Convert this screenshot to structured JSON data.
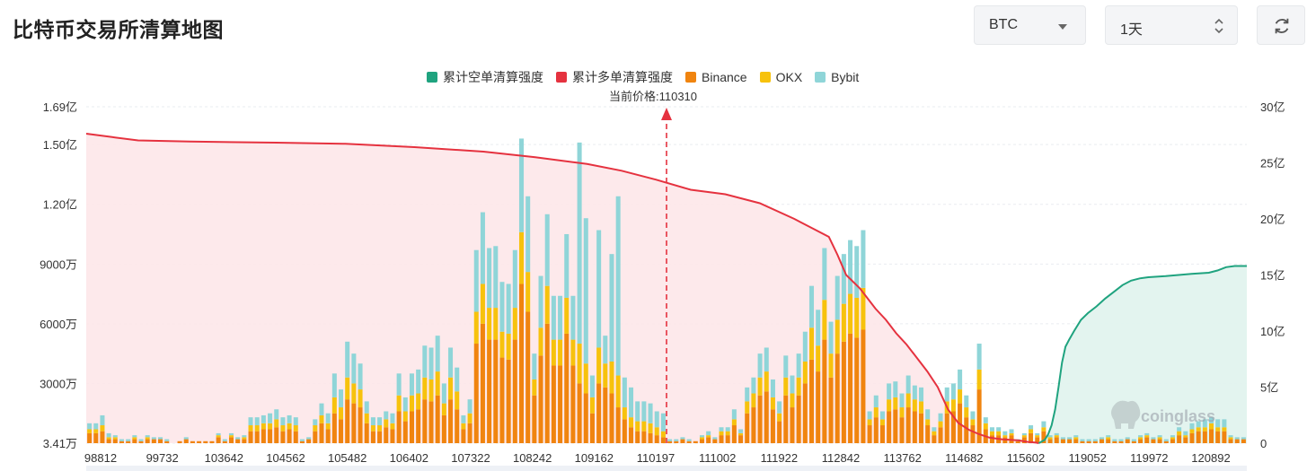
{
  "page": {
    "title": "比特币交易所清算地图",
    "coin_select": {
      "value": "BTC"
    },
    "range_select": {
      "value": "1天"
    },
    "refresh_icon": "refresh-icon"
  },
  "chart_data": {
    "type": "bar+area",
    "legend": [
      {
        "label": "累计空单清算强度",
        "color": "#1fa37f"
      },
      {
        "label": "累计多单清算强度",
        "color": "#e5323f"
      },
      {
        "label": "Binance",
        "color": "#f0840f"
      },
      {
        "label": "OKX",
        "color": "#f7c20d"
      },
      {
        "label": "Bybit",
        "color": "#8fd5d8"
      }
    ],
    "current_price_label": "当前价格:110310",
    "current_price": 110310,
    "x_tick_labels": [
      "98812",
      "99732",
      "103642",
      "104562",
      "105482",
      "106402",
      "107322",
      "108242",
      "109162",
      "110197",
      "111002",
      "111922",
      "112842",
      "113762",
      "114682",
      "115602",
      "119052",
      "119972",
      "120892"
    ],
    "left_axis": {
      "ticks": [
        "1.69亿",
        "1.50亿",
        "1.20亿",
        "9000万",
        "6000万",
        "3000万",
        "3.41万"
      ],
      "values": [
        169000000,
        150000000,
        120000000,
        90000000,
        60000000,
        30000000,
        34100
      ],
      "range": [
        34100,
        169000000
      ]
    },
    "right_axis": {
      "ticks": [
        "30亿",
        "25亿",
        "20亿",
        "15亿",
        "10亿",
        "5亿",
        "0"
      ],
      "values": [
        3000000000,
        2500000000,
        2000000000,
        1500000000,
        1000000000,
        500000000,
        0
      ],
      "range": [
        0,
        3000000000
      ]
    },
    "bars_per_side": 90,
    "left_bar_totals_M": [
      10,
      10,
      14,
      5,
      4,
      2,
      2,
      4,
      2,
      4,
      3,
      3,
      2,
      0,
      1,
      3,
      1,
      1,
      1,
      1,
      5,
      2,
      5,
      3,
      4,
      13,
      13,
      14,
      15,
      17,
      13,
      14,
      13,
      2,
      3,
      12,
      20,
      15,
      35,
      27,
      51,
      45,
      40,
      21,
      13,
      13,
      16,
      15,
      35,
      23,
      35,
      37,
      49,
      48,
      54,
      30,
      48,
      38,
      14,
      22,
      97,
      116,
      98,
      99,
      81,
      80,
      97,
      153,
      124,
      45,
      84,
      115,
      74,
      74,
      105,
      74,
      151,
      113,
      34,
      107,
      54,
      95,
      124,
      33,
      28,
      21,
      21,
      20,
      16,
      15
    ],
    "left_bar_binance_M": [
      5,
      5,
      6,
      2,
      2,
      1,
      1,
      2,
      1,
      2,
      2,
      2,
      1,
      0,
      1,
      2,
      1,
      1,
      1,
      1,
      3,
      1,
      3,
      2,
      2,
      6,
      6,
      7,
      7,
      8,
      6,
      7,
      6,
      1,
      2,
      6,
      10,
      7,
      15,
      12,
      22,
      20,
      18,
      10,
      6,
      6,
      8,
      7,
      16,
      11,
      16,
      17,
      22,
      21,
      24,
      14,
      22,
      17,
      7,
      10,
      50,
      60,
      52,
      52,
      43,
      42,
      52,
      80,
      66,
      24,
      44,
      60,
      39,
      39,
      55,
      39,
      30,
      25,
      15,
      30,
      28,
      25,
      18,
      12,
      8,
      6,
      6,
      5,
      4,
      3
    ],
    "left_bar_okx_M": [
      2,
      2,
      3,
      1,
      1,
      0,
      0,
      1,
      0,
      1,
      0,
      0,
      0,
      0,
      0,
      0,
      0,
      0,
      0,
      0,
      1,
      0,
      1,
      0,
      1,
      3,
      3,
      3,
      3,
      4,
      3,
      3,
      3,
      0,
      0,
      3,
      4,
      3,
      8,
      6,
      11,
      10,
      9,
      5,
      3,
      3,
      4,
      3,
      8,
      5,
      8,
      8,
      11,
      11,
      12,
      6,
      11,
      9,
      3,
      5,
      16,
      20,
      16,
      16,
      13,
      13,
      16,
      26,
      20,
      8,
      14,
      19,
      13,
      13,
      18,
      13,
      20,
      15,
      8,
      18,
      12,
      16,
      16,
      6,
      5,
      5,
      5,
      5,
      4,
      3
    ],
    "right_bar_totals_M": [
      2,
      2,
      3,
      2,
      1,
      4,
      6,
      3,
      8,
      8,
      17,
      7,
      28,
      33,
      45,
      48,
      32,
      21,
      44,
      34,
      45,
      56,
      79,
      67,
      98,
      61,
      84,
      95,
      102,
      99,
      107,
      16,
      24,
      16,
      30,
      31,
      25,
      34,
      29,
      28,
      17,
      8,
      15,
      28,
      30,
      37,
      24,
      16,
      50,
      13,
      8,
      8,
      6,
      7,
      2,
      5,
      9,
      5,
      11,
      4,
      5,
      3,
      3,
      4,
      2,
      2,
      2,
      3,
      4,
      2,
      2,
      3,
      2,
      4,
      5,
      3,
      4,
      2,
      4,
      8,
      6,
      10,
      11,
      12,
      13,
      12,
      12,
      4,
      3,
      3
    ],
    "right_bar_binance_M": [
      1,
      1,
      2,
      1,
      1,
      2,
      3,
      2,
      4,
      4,
      9,
      4,
      15,
      18,
      24,
      26,
      17,
      11,
      24,
      18,
      24,
      30,
      42,
      36,
      52,
      33,
      45,
      51,
      55,
      53,
      57,
      9,
      13,
      9,
      16,
      17,
      13,
      18,
      16,
      15,
      9,
      4,
      8,
      15,
      16,
      20,
      13,
      9,
      27,
      7,
      4,
      4,
      3,
      4,
      1,
      3,
      5,
      3,
      6,
      2,
      3,
      2,
      2,
      2,
      1,
      1,
      1,
      2,
      2,
      1,
      1,
      2,
      1,
      2,
      3,
      2,
      2,
      1,
      2,
      4,
      3,
      5,
      6,
      6,
      7,
      6,
      6,
      2,
      2,
      2
    ],
    "right_bar_okx_M": [
      0,
      0,
      0,
      0,
      0,
      1,
      1,
      0,
      2,
      2,
      3,
      1,
      6,
      7,
      9,
      10,
      6,
      4,
      9,
      7,
      9,
      11,
      16,
      13,
      20,
      12,
      17,
      19,
      20,
      20,
      21,
      3,
      5,
      3,
      6,
      6,
      5,
      7,
      6,
      6,
      3,
      2,
      3,
      6,
      6,
      7,
      5,
      3,
      10,
      3,
      2,
      2,
      1,
      1,
      0,
      1,
      2,
      1,
      2,
      1,
      1,
      0,
      0,
      1,
      0,
      0,
      0,
      0,
      1,
      0,
      0,
      0,
      0,
      1,
      1,
      0,
      1,
      0,
      1,
      2,
      1,
      2,
      2,
      2,
      3,
      2,
      2,
      1,
      0,
      0
    ],
    "cumulative_long_points": [
      [
        0,
        27.6
      ],
      [
        3,
        27.3
      ],
      [
        6,
        27.0
      ],
      [
        12,
        26.9
      ],
      [
        22,
        26.8
      ],
      [
        30,
        26.7
      ],
      [
        38,
        26.4
      ],
      [
        46,
        26.0
      ],
      [
        52,
        25.5
      ],
      [
        58,
        24.9
      ],
      [
        62,
        24.3
      ],
      [
        66,
        23.5
      ],
      [
        70,
        22.6
      ],
      [
        74,
        22.2
      ],
      [
        78,
        21.4
      ],
      [
        82,
        20.0
      ],
      [
        84,
        19.2
      ],
      [
        86,
        18.4
      ],
      [
        87,
        16.8
      ],
      [
        88,
        15.0
      ],
      [
        89.6,
        13.8
      ],
      [
        90.2,
        13.2
      ],
      [
        91.4,
        12.0
      ],
      [
        92.6,
        11.0
      ],
      [
        93.8,
        9.8
      ],
      [
        95.0,
        8.8
      ],
      [
        96.2,
        7.6
      ],
      [
        97.4,
        6.4
      ],
      [
        98.6,
        5.0
      ],
      [
        99.8,
        3.0
      ],
      [
        101,
        1.8
      ],
      [
        102.2,
        1.2
      ],
      [
        103.4,
        0.8
      ],
      [
        104.6,
        0.5
      ],
      [
        106,
        0.35
      ],
      [
        108,
        0.25
      ],
      [
        109,
        0.12
      ],
      [
        110,
        0.05
      ],
      [
        110.31,
        0
      ]
    ],
    "cumulative_short_points": [
      [
        110.31,
        0
      ],
      [
        111,
        0.3
      ],
      [
        111.4,
        0.8
      ],
      [
        111.8,
        1.6
      ],
      [
        112.2,
        3.0
      ],
      [
        112.6,
        5.0
      ],
      [
        113.0,
        7.2
      ],
      [
        113.4,
        8.6
      ],
      [
        113.8,
        9.2
      ],
      [
        114.4,
        10.0
      ],
      [
        115.2,
        11.0
      ],
      [
        116,
        11.6
      ],
      [
        117,
        12.2
      ],
      [
        118,
        12.9
      ],
      [
        119,
        13.5
      ],
      [
        120,
        14.1
      ],
      [
        121,
        14.5
      ],
      [
        122,
        14.7
      ],
      [
        123,
        14.8
      ],
      [
        125,
        14.9
      ],
      [
        126.5,
        15.0
      ],
      [
        128,
        15.1
      ],
      [
        130,
        15.2
      ],
      [
        131,
        15.4
      ],
      [
        132,
        15.7
      ],
      [
        133,
        15.8
      ],
      [
        134.4,
        15.8
      ]
    ],
    "watermark": "coinglass"
  }
}
